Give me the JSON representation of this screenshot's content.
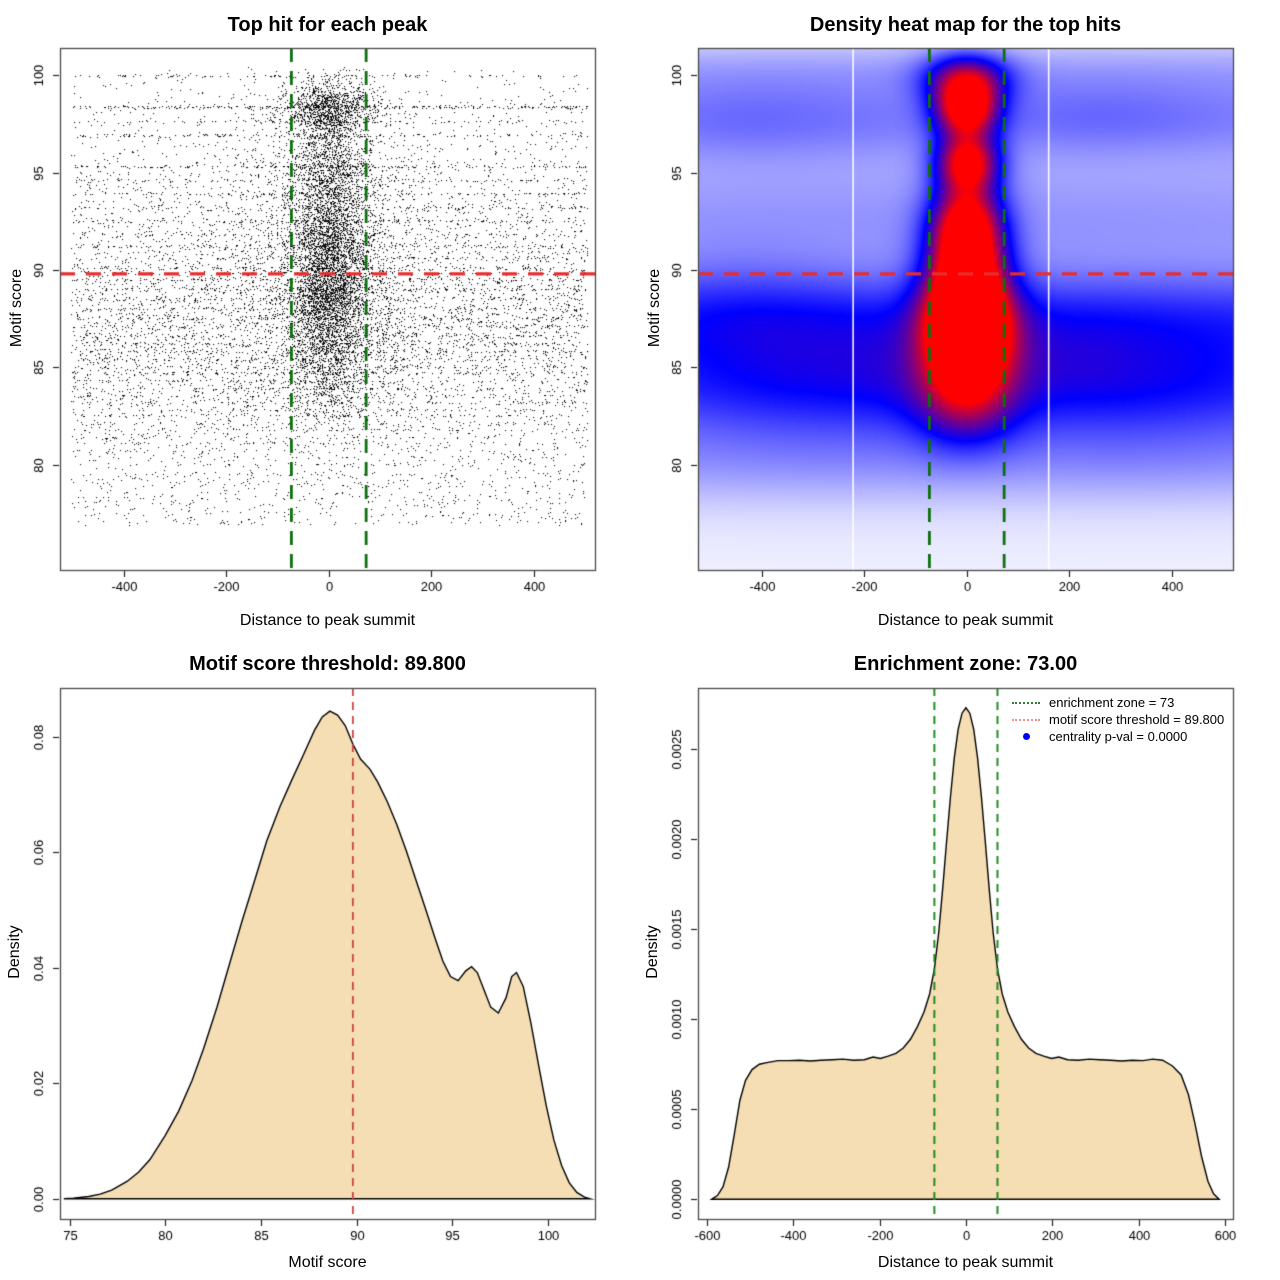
{
  "panels": {
    "scatter": {
      "title": "Top hit for each peak",
      "xlabel": "Distance to peak summit",
      "ylabel": "Motif score"
    },
    "heatmap": {
      "title": "Density heat map for the top hits",
      "xlabel": "Distance to peak summit",
      "ylabel": "Motif score"
    },
    "score_density": {
      "title": "Motif score threshold: 89.800",
      "xlabel": "Motif score",
      "ylabel": "Density"
    },
    "summit_density": {
      "title": "Enrichment zone: 73.00",
      "xlabel": "Distance to peak summit",
      "ylabel": "Density"
    }
  },
  "legend": {
    "items": [
      {
        "label": "enrichment zone = 73",
        "swatch": "green-dotted-line",
        "color": "#2e7d32"
      },
      {
        "label": "motif score threshold = 89.800",
        "swatch": "red-dotted-line",
        "color": "#f09090"
      },
      {
        "label": "centrality p-val = 0.0000",
        "swatch": "blue-point",
        "color": "#0000ee"
      }
    ]
  },
  "colors": {
    "box": "#4a4a4a",
    "tick_text": "#000000",
    "point": "#000000",
    "area_fill": "#f5deb3",
    "area_stroke": "#000000",
    "red_line": "#e62e2e",
    "red_line_soft": "#cc4444",
    "green_dark": "#0e6f0e",
    "green_mid": "#1f8b1f",
    "heat_palette": [
      "#ffffff",
      "#0000ff",
      "#ff0000"
    ],
    "heat_stripe": "#ffffff"
  },
  "chart_data": {
    "scatter": {
      "type": "scatter",
      "xlim": [
        -525,
        520
      ],
      "ylim": [
        74.6,
        101.4
      ],
      "xticks": {
        "values": [
          -400,
          -200,
          0,
          200,
          400
        ],
        "labels": [
          "-400",
          "-200",
          "0",
          "200",
          "400"
        ]
      },
      "yticks": {
        "values": [
          80,
          85,
          90,
          95,
          100
        ],
        "labels": [
          "80",
          "85",
          "90",
          "95",
          "100"
        ]
      },
      "vlines": {
        "x": [
          -73,
          73
        ],
        "style": "dashed",
        "width": 2.8
      },
      "hlines": {
        "y": [
          89.8
        ],
        "style": "dashed",
        "width": 3.2
      },
      "seed": 1234,
      "components": [
        {
          "n": 8800,
          "x": [
            "uniform",
            -503,
            506
          ],
          "y": "score"
        },
        {
          "n": 5200,
          "x": [
            "normal",
            0,
            36,
            -118,
            118
          ],
          "y": "center"
        },
        {
          "n": 2400,
          "x": [
            "normal",
            0,
            80,
            -250,
            250
          ],
          "y": "center"
        },
        {
          "n": 380,
          "x": [
            "uniform",
            -498,
            500
          ],
          "y": [
            "uniform",
            76.9,
            79.6
          ]
        }
      ],
      "score_dist": {
        "cont": {
          "mean": 87.3,
          "sd": 4.6,
          "w": 0.6,
          "clip": [
            76.9,
            100.35
          ]
        },
        "hi": {
          "w": 0.06,
          "range": [
            93,
            100.3
          ]
        },
        "bands_w": 0.34
      },
      "center_dist": {
        "mix": [
          [
            89.8,
            2.0,
            0.34
          ],
          [
            95.45,
            1.15,
            0.13
          ],
          [
            98.3,
            0.75,
            0.16
          ],
          [
            92.6,
            1.4,
            0.12
          ],
          [
            86.6,
            1.5,
            0.1
          ],
          [
            88.3,
            1.0,
            0.04
          ],
          [
            84.2,
            1.3,
            0.05
          ]
        ],
        "bands_w": 0.06,
        "clip": [
          76.9,
          100.4
        ]
      },
      "bands": [
        [
          99.95,
          0.9
        ],
        [
          98.35,
          3.2
        ],
        [
          97.6,
          0.9
        ],
        [
          96.9,
          1.7
        ],
        [
          95.3,
          1.7
        ],
        [
          94.6,
          0.9
        ],
        [
          93.9,
          1.3
        ],
        [
          93.2,
          0.9
        ],
        [
          92.5,
          1.3
        ],
        [
          91.8,
          0.9
        ],
        [
          91.2,
          1.1
        ],
        [
          90.6,
          0.9
        ],
        [
          90.1,
          1.1
        ],
        [
          89.5,
          1.0
        ],
        [
          89.0,
          1.3
        ],
        [
          88.5,
          1.0
        ],
        [
          88.0,
          1.3
        ],
        [
          87.5,
          1.0
        ],
        [
          87.1,
          1.1
        ],
        [
          86.6,
          1.0
        ],
        [
          86.2,
          1.1
        ],
        [
          85.8,
          0.9
        ],
        [
          85.4,
          1.0
        ],
        [
          85.0,
          0.8
        ],
        [
          84.7,
          0.9
        ],
        [
          84.3,
          0.8
        ],
        [
          83.9,
          0.9
        ],
        [
          83.5,
          0.7
        ],
        [
          83.2,
          0.7
        ],
        [
          82.8,
          0.6
        ],
        [
          82.5,
          0.7
        ],
        [
          82.1,
          0.5
        ],
        [
          81.8,
          0.5
        ],
        [
          81.4,
          0.4
        ],
        [
          81.1,
          0.4
        ],
        [
          80.7,
          0.3
        ],
        [
          80.4,
          0.3
        ],
        [
          80.0,
          0.25
        ],
        [
          79.5,
          0.2
        ],
        [
          79.0,
          0.15
        ]
      ]
    },
    "heatmap": {
      "type": "heatmap",
      "xlim": [
        -525,
        520
      ],
      "ylim": [
        74.6,
        101.4
      ],
      "xticks": {
        "values": [
          -400,
          -200,
          0,
          200,
          400
        ],
        "labels": [
          "-400",
          "-200",
          "0",
          "200",
          "400"
        ]
      },
      "yticks": {
        "values": [
          80,
          85,
          90,
          95,
          100
        ],
        "labels": [
          "80",
          "85",
          "90",
          "95",
          "100"
        ]
      },
      "vlines": {
        "x": [
          -73,
          73
        ],
        "style": "dashed",
        "width": 2.8
      },
      "hlines": {
        "y": [
          89.8
        ],
        "style": "dashed",
        "width": 3.2
      },
      "white_stripes_x": [
        -222,
        160
      ],
      "kernels": [
        [
          0,
          88,
          2000,
          9,
          0.1
        ],
        [
          0,
          84.3,
          2000,
          2.4,
          0.3
        ],
        [
          0,
          87.8,
          2000,
          1.6,
          0.2
        ],
        [
          0,
          92.8,
          2000,
          2.2,
          0.12
        ],
        [
          0,
          97.9,
          2000,
          1.6,
          0.18
        ],
        [
          0,
          100.4,
          2000,
          1.1,
          0.1
        ],
        [
          0,
          79.9,
          2000,
          1.5,
          0.09
        ],
        [
          -350,
          84.8,
          160,
          2.6,
          0.1
        ],
        [
          360,
          84.3,
          190,
          2.6,
          0.1
        ],
        [
          -130,
          84.6,
          110,
          2.2,
          0.08
        ],
        [
          150,
          85.1,
          130,
          2.2,
          0.08
        ],
        [
          -420,
          97.6,
          160,
          1.6,
          0.05
        ],
        [
          270,
          97.9,
          160,
          1.3,
          0.05
        ],
        [
          -460,
          88.6,
          150,
          2.0,
          0.06
        ],
        [
          0,
          89.7,
          52,
          2.3,
          1.05
        ],
        [
          4,
          87.1,
          58,
          1.7,
          0.7
        ],
        [
          0,
          92.5,
          46,
          1.4,
          0.55
        ],
        [
          2,
          95.5,
          42,
          1.05,
          0.85
        ],
        [
          0,
          98.35,
          42,
          1.05,
          0.92
        ],
        [
          0,
          99.9,
          58,
          0.9,
          0.5
        ],
        [
          0,
          84.9,
          62,
          1.8,
          0.45
        ],
        [
          0,
          82.6,
          70,
          1.5,
          0.22
        ]
      ]
    },
    "score_density": {
      "type": "area",
      "xlim": [
        74.5,
        102.45
      ],
      "ylim": [
        -0.0035,
        0.0885
      ],
      "xticks": {
        "values": [
          75,
          80,
          85,
          90,
          95,
          100
        ],
        "labels": [
          "75",
          "80",
          "85",
          "90",
          "95",
          "100"
        ]
      },
      "yticks": {
        "values": [
          0,
          0.02,
          0.04,
          0.06,
          0.08
        ],
        "labels": [
          "0.00",
          "0.02",
          "0.04",
          "0.06",
          "0.08"
        ]
      },
      "vlines": {
        "x": [
          89.8
        ],
        "style": "dashed",
        "width": 1.8
      },
      "points": [
        [
          74.7,
          0
        ],
        [
          75.2,
          0.0001
        ],
        [
          76,
          0.0004
        ],
        [
          76.6,
          0.0008
        ],
        [
          77.2,
          0.0015
        ],
        [
          78,
          0.003
        ],
        [
          78.6,
          0.0046
        ],
        [
          79.2,
          0.0068
        ],
        [
          80,
          0.011
        ],
        [
          80.7,
          0.0152
        ],
        [
          81.4,
          0.0205
        ],
        [
          82,
          0.026
        ],
        [
          82.7,
          0.0332
        ],
        [
          83.4,
          0.0412
        ],
        [
          84,
          0.048
        ],
        [
          84.7,
          0.0555
        ],
        [
          85.3,
          0.062
        ],
        [
          86,
          0.068
        ],
        [
          86.6,
          0.0725
        ],
        [
          87.2,
          0.0768
        ],
        [
          87.8,
          0.0812
        ],
        [
          88.2,
          0.0835
        ],
        [
          88.6,
          0.0845
        ],
        [
          89,
          0.0838
        ],
        [
          89.4,
          0.082
        ],
        [
          89.8,
          0.0788
        ],
        [
          90.2,
          0.0762
        ],
        [
          90.7,
          0.0744
        ],
        [
          91.1,
          0.0722
        ],
        [
          91.6,
          0.0688
        ],
        [
          92.1,
          0.0648
        ],
        [
          92.6,
          0.0602
        ],
        [
          93.1,
          0.0552
        ],
        [
          93.6,
          0.0502
        ],
        [
          94.1,
          0.0451
        ],
        [
          94.5,
          0.0412
        ],
        [
          94.9,
          0.0385
        ],
        [
          95.3,
          0.0378
        ],
        [
          95.7,
          0.0395
        ],
        [
          96,
          0.0402
        ],
        [
          96.3,
          0.0392
        ],
        [
          96.7,
          0.0358
        ],
        [
          97,
          0.0332
        ],
        [
          97.4,
          0.0322
        ],
        [
          97.8,
          0.0348
        ],
        [
          98.1,
          0.0385
        ],
        [
          98.35,
          0.0392
        ],
        [
          98.7,
          0.0368
        ],
        [
          99.1,
          0.0305
        ],
        [
          99.5,
          0.0232
        ],
        [
          99.9,
          0.0162
        ],
        [
          100.3,
          0.0102
        ],
        [
          100.7,
          0.0058
        ],
        [
          101.1,
          0.0028
        ],
        [
          101.5,
          0.0011
        ],
        [
          101.9,
          0.0003
        ],
        [
          102.2,
          0
        ]
      ]
    },
    "summit_density": {
      "type": "area",
      "xlim": [
        -620,
        618
      ],
      "ylim": [
        -0.00011,
        0.00284
      ],
      "xticks": {
        "values": [
          -600,
          -400,
          -200,
          0,
          200,
          400,
          600
        ],
        "labels": [
          "-600",
          "-400",
          "-200",
          "0",
          "200",
          "400",
          "600"
        ]
      },
      "yticks": {
        "values": [
          0,
          0.0005,
          0.001,
          0.0015,
          0.002,
          0.0025
        ],
        "labels": [
          "0.0000",
          "0.0005",
          "0.0010",
          "0.0015",
          "0.0020",
          "0.0025"
        ]
      },
      "vlines": {
        "x": [
          -73,
          73
        ],
        "style": "dashed",
        "width": 2.0
      },
      "points": [
        [
          -588,
          0
        ],
        [
          -575,
          2e-05
        ],
        [
          -562,
          7e-05
        ],
        [
          -549,
          0.00018
        ],
        [
          -536,
          0.00036
        ],
        [
          -523,
          0.00055
        ],
        [
          -510,
          0.00066
        ],
        [
          -495,
          0.00072
        ],
        [
          -478,
          0.00075
        ],
        [
          -458,
          0.00076
        ],
        [
          -435,
          0.00077
        ],
        [
          -410,
          0.00077
        ],
        [
          -385,
          0.000772
        ],
        [
          -360,
          0.000768
        ],
        [
          -335,
          0.000772
        ],
        [
          -310,
          0.000775
        ],
        [
          -285,
          0.000778
        ],
        [
          -260,
          0.000772
        ],
        [
          -235,
          0.000775
        ],
        [
          -215,
          0.00079
        ],
        [
          -198,
          0.000782
        ],
        [
          -180,
          0.000795
        ],
        [
          -162,
          0.00081
        ],
        [
          -145,
          0.00084
        ],
        [
          -128,
          0.00089
        ],
        [
          -112,
          0.00096
        ],
        [
          -97,
          0.00104
        ],
        [
          -84,
          0.00114
        ],
        [
          -73,
          0.00128
        ],
        [
          -63,
          0.00148
        ],
        [
          -54,
          0.00172
        ],
        [
          -45,
          0.00198
        ],
        [
          -36,
          0.00223
        ],
        [
          -27,
          0.00245
        ],
        [
          -18,
          0.00261
        ],
        [
          -9,
          0.0027
        ],
        [
          0,
          0.00273
        ],
        [
          9,
          0.0027
        ],
        [
          18,
          0.00261
        ],
        [
          27,
          0.00245
        ],
        [
          36,
          0.00223
        ],
        [
          45,
          0.00198
        ],
        [
          54,
          0.00172
        ],
        [
          63,
          0.00148
        ],
        [
          73,
          0.00128
        ],
        [
          84,
          0.00114
        ],
        [
          97,
          0.00104
        ],
        [
          112,
          0.00096
        ],
        [
          128,
          0.00089
        ],
        [
          145,
          0.00084
        ],
        [
          162,
          0.00081
        ],
        [
          180,
          0.000795
        ],
        [
          198,
          0.000782
        ],
        [
          215,
          0.00079
        ],
        [
          235,
          0.000775
        ],
        [
          260,
          0.000772
        ],
        [
          285,
          0.000778
        ],
        [
          310,
          0.000775
        ],
        [
          335,
          0.000772
        ],
        [
          360,
          0.000768
        ],
        [
          385,
          0.000772
        ],
        [
          410,
          0.00077
        ],
        [
          432,
          0.000778
        ],
        [
          455,
          0.000772
        ],
        [
          478,
          0.00074
        ],
        [
          498,
          0.00069
        ],
        [
          515,
          0.00058
        ],
        [
          530,
          0.00042
        ],
        [
          545,
          0.00024
        ],
        [
          560,
          0.0001
        ],
        [
          573,
          3e-05
        ],
        [
          586,
          0
        ]
      ]
    }
  }
}
